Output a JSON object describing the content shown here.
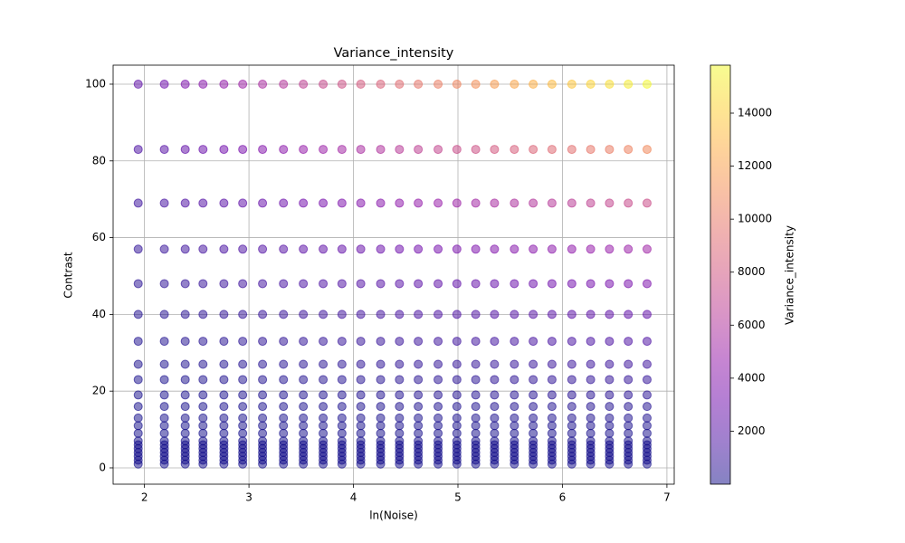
{
  "chart_data": {
    "type": "scatter",
    "title": "Variance_intensity",
    "x_label": "ln(Noise)",
    "y_label": "Contrast",
    "colorbar_label": "Variance_intensity",
    "colormap": "plasma",
    "grid": true,
    "x": [
      1.94,
      2.19,
      2.39,
      2.56,
      2.76,
      2.94,
      3.13,
      3.33,
      3.52,
      3.71,
      3.89,
      4.07,
      4.26,
      4.44,
      4.62,
      4.81,
      4.99,
      5.17,
      5.35,
      5.54,
      5.72,
      5.9,
      6.09,
      6.27,
      6.45,
      6.63,
      6.81
    ],
    "y": [
      100,
      83,
      69,
      57,
      48,
      40,
      33,
      27,
      23,
      19,
      16,
      13,
      11,
      9,
      7,
      6,
      5,
      4,
      3,
      2,
      1
    ],
    "values": [
      [
        2355,
        2983,
        3611,
        4082,
        4553,
        5024,
        5652,
        6123,
        6751,
        7222,
        7693,
        8164,
        8635,
        9263,
        9734,
        10205,
        10676,
        11147,
        11775,
        12246,
        12717,
        13188,
        13659,
        14287,
        14758,
        15229,
        15700
      ],
      [
        1622,
        2055,
        2488,
        2812,
        3137,
        3461,
        3894,
        4218,
        4651,
        4975,
        5300,
        5624,
        5949,
        6381,
        6706,
        7030,
        7355,
        7679,
        8112,
        8436,
        8761,
        9085,
        9410,
        9843,
        10167,
        10492,
        10816
      ],
      [
        1121,
        1420,
        1719,
        1944,
        2168,
        2392,
        2691,
        2915,
        3214,
        3439,
        3663,
        3887,
        4111,
        4410,
        4635,
        4859,
        5083,
        5307,
        5606,
        5831,
        6055,
        6279,
        6503,
        6802,
        7027,
        7251,
        7475
      ],
      [
        765,
        969,
        1173,
        1326,
        1479,
        1632,
        1836,
        1989,
        2193,
        2346,
        2499,
        2653,
        2806,
        3010,
        3163,
        3316,
        3469,
        3622,
        3826,
        3979,
        4132,
        4285,
        4438,
        4642,
        4795,
        4948,
        5101
      ],
      [
        543,
        687,
        832,
        940,
        1049,
        1157,
        1302,
        1411,
        1555,
        1664,
        1772,
        1881,
        1989,
        2134,
        2243,
        2351,
        2460,
        2568,
        2713,
        2821,
        2930,
        3038,
        3147,
        3291,
        3400,
        3508,
        3617
      ],
      [
        377,
        477,
        578,
        653,
        728,
        804,
        904,
        980,
        1080,
        1156,
        1231,
        1306,
        1382,
        1482,
        1557,
        1633,
        1708,
        1784,
        1884,
        1959,
        2035,
        2110,
        2185,
        2286,
        2361,
        2437,
        2512
      ],
      [
        257,
        325,
        393,
        445,
        496,
        547,
        616,
        667,
        735,
        787,
        838,
        889,
        941,
        1009,
        1060,
        1112,
        1163,
        1214,
        1283,
        1334,
        1385,
        1436,
        1488,
        1556,
        1607,
        1659,
        1710
      ],
      [
        172,
        218,
        263,
        298,
        332,
        366,
        412,
        447,
        492,
        527,
        561,
        595,
        630,
        676,
        710,
        744,
        779,
        813,
        859,
        893,
        927,
        962,
        996,
        1042,
        1076,
        1111,
        1145
      ],
      [
        125,
        158,
        191,
        216,
        241,
        266,
        299,
        324,
        357,
        382,
        407,
        432,
        457,
        490,
        515,
        540,
        565,
        590,
        623,
        648,
        673,
        698,
        723,
        756,
        781,
        806,
        831
      ],
      [
        85,
        108,
        130,
        147,
        164,
        181,
        204,
        221,
        244,
        261,
        278,
        295,
        312,
        335,
        352,
        369,
        386,
        403,
        425,
        442,
        459,
        476,
        493,
        516,
        533,
        550,
        567
      ],
      [
        60,
        76,
        92,
        105,
        117,
        129,
        145,
        157,
        173,
        185,
        197,
        209,
        221,
        237,
        249,
        261,
        273,
        285,
        302,
        314,
        326,
        338,
        350,
        366,
        378,
        390,
        402
      ],
      [
        40,
        50,
        61,
        69,
        77,
        85,
        95,
        103,
        114,
        122,
        130,
        138,
        146,
        156,
        164,
        172,
        180,
        188,
        199,
        207,
        215,
        223,
        231,
        241,
        249,
        257,
        265
      ],
      [
        29,
        36,
        44,
        49,
        55,
        61,
        68,
        74,
        82,
        87,
        93,
        99,
        105,
        112,
        118,
        124,
        129,
        135,
        143,
        148,
        154,
        160,
        165,
        173,
        179,
        184,
        190
      ],
      [
        19,
        24,
        29,
        33,
        37,
        41,
        46,
        50,
        55,
        58,
        62,
        66,
        70,
        75,
        79,
        83,
        86,
        90,
        95,
        99,
        103,
        107,
        110,
        116,
        119,
        123,
        127
      ],
      [
        12,
        15,
        18,
        20,
        22,
        25,
        28,
        30,
        33,
        35,
        38,
        40,
        42,
        45,
        48,
        50,
        52,
        55,
        58,
        60,
        62,
        65,
        67,
        70,
        72,
        75,
        77
      ],
      [
        9,
        11,
        13,
        15,
        17,
        18,
        21,
        22,
        25,
        26,
        28,
        30,
        31,
        34,
        35,
        37,
        39,
        40,
        43,
        44,
        46,
        48,
        50,
        52,
        54,
        55,
        57
      ],
      [
        6,
        7,
        9,
        10,
        11,
        12,
        14,
        15,
        17,
        18,
        19,
        20,
        21,
        23,
        24,
        25,
        27,
        28,
        29,
        30,
        32,
        33,
        34,
        35,
        37,
        38,
        39
      ],
      [
        4,
        5,
        6,
        7,
        7,
        8,
        9,
        10,
        11,
        12,
        12,
        13,
        14,
        15,
        16,
        16,
        17,
        18,
        19,
        20,
        20,
        21,
        22,
        23,
        24,
        24,
        25
      ],
      [
        2,
        3,
        3,
        4,
        4,
        4,
        5,
        5,
        6,
        6,
        7,
        7,
        8,
        8,
        9,
        9,
        10,
        10,
        11,
        11,
        11,
        12,
        12,
        13,
        13,
        14,
        14
      ],
      [
        1,
        1,
        1,
        2,
        2,
        2,
        2,
        2,
        3,
        3,
        3,
        3,
        3,
        4,
        4,
        4,
        4,
        4,
        5,
        5,
        5,
        5,
        5,
        5,
        6,
        6,
        6
      ],
      [
        0,
        0,
        0,
        1,
        1,
        1,
        1,
        1,
        1,
        1,
        1,
        1,
        1,
        1,
        1,
        1,
        1,
        1,
        2,
        2,
        2,
        2,
        2,
        2,
        2,
        2,
        2
      ]
    ],
    "xlim": [
      1.7,
      7.07
    ],
    "xticks": [
      2,
      3,
      4,
      5,
      6,
      7
    ],
    "ylim": [
      -4.25,
      104.95
    ],
    "yticks": [
      0,
      20,
      40,
      60,
      80,
      100
    ],
    "clim": [
      0,
      15810
    ],
    "cticks": [
      2000,
      4000,
      6000,
      8000,
      10000,
      12000,
      14000
    ]
  }
}
